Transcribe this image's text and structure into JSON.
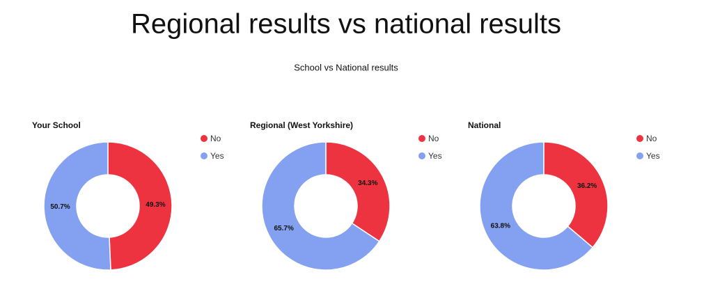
{
  "title": "Regional results vs national results",
  "subtitle": "School vs National results",
  "chart_data": [
    {
      "type": "donut",
      "title": "Your School",
      "categories": [
        "No",
        "Yes"
      ],
      "values": [
        49.3,
        50.7
      ],
      "value_labels": [
        "49.3%",
        "50.7%"
      ],
      "colors": [
        "#ee3340",
        "#84a0f0"
      ]
    },
    {
      "type": "donut",
      "title": "Regional (West Yorkshire)",
      "categories": [
        "No",
        "Yes"
      ],
      "values": [
        34.3,
        65.7
      ],
      "value_labels": [
        "34.3%",
        "65.7%"
      ],
      "colors": [
        "#ee3340",
        "#84a0f0"
      ]
    },
    {
      "type": "donut",
      "title": "National",
      "categories": [
        "No",
        "Yes"
      ],
      "values": [
        36.2,
        63.8
      ],
      "value_labels": [
        "36.2%",
        "63.8%"
      ],
      "colors": [
        "#ee3340",
        "#84a0f0"
      ]
    }
  ]
}
